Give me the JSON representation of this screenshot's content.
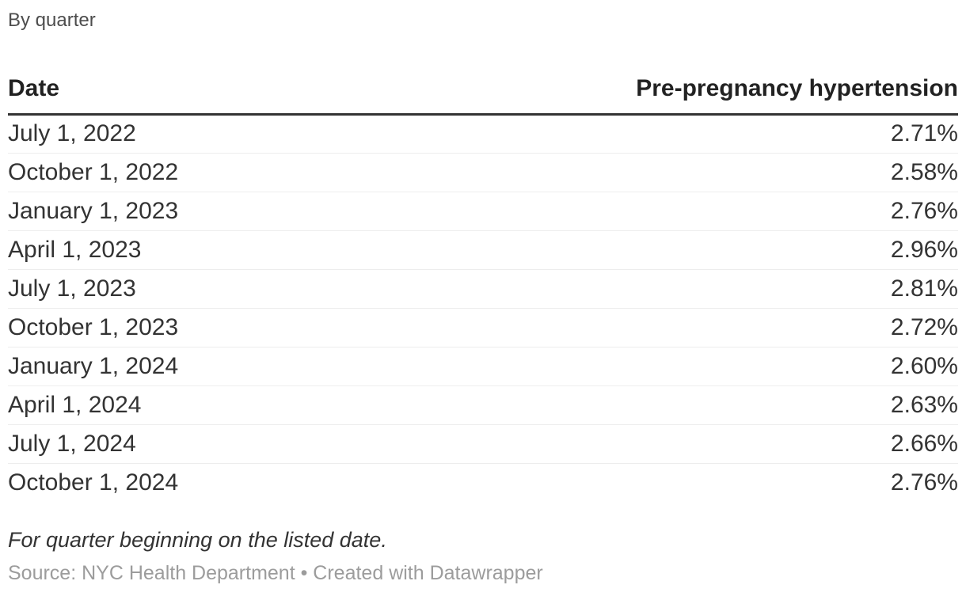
{
  "subtitle": "By quarter",
  "table": {
    "headers": {
      "date": "Date",
      "value": "Pre-pregnancy hypertension"
    },
    "rows": [
      {
        "date": "July 1, 2022",
        "value": "2.71%"
      },
      {
        "date": "October 1, 2022",
        "value": "2.58%"
      },
      {
        "date": "January 1, 2023",
        "value": "2.76%"
      },
      {
        "date": "April 1, 2023",
        "value": "2.96%"
      },
      {
        "date": "July 1, 2023",
        "value": "2.81%"
      },
      {
        "date": "October 1, 2023",
        "value": "2.72%"
      },
      {
        "date": "January 1, 2024",
        "value": "2.60%"
      },
      {
        "date": "April 1, 2024",
        "value": "2.63%"
      },
      {
        "date": "July 1, 2024",
        "value": "2.66%"
      },
      {
        "date": "October 1, 2024",
        "value": "2.76%"
      }
    ]
  },
  "footer": {
    "note": "For quarter beginning on the listed date.",
    "source": "Source: NYC Health Department • Created with Datawrapper"
  },
  "colors": {
    "header_text": "#222222",
    "body_text": "#333333",
    "subtitle_text": "#4d4d4d",
    "source_text": "#9c9c9c",
    "header_rule": "#333333",
    "row_divider": "#ededed",
    "background": "#ffffff"
  },
  "chart_data": {
    "type": "table",
    "title": "",
    "subtitle": "By quarter",
    "columns": [
      "Date",
      "Pre-pregnancy hypertension"
    ],
    "categories": [
      "July 1, 2022",
      "October 1, 2022",
      "January 1, 2023",
      "April 1, 2023",
      "July 1, 2023",
      "October 1, 2023",
      "January 1, 2024",
      "April 1, 2024",
      "July 1, 2024",
      "October 1, 2024"
    ],
    "series": [
      {
        "name": "Pre-pregnancy hypertension",
        "values": [
          2.71,
          2.58,
          2.76,
          2.96,
          2.81,
          2.72,
          2.6,
          2.63,
          2.66,
          2.76
        ],
        "unit": "%"
      }
    ],
    "note": "For quarter beginning on the listed date.",
    "source": "NYC Health Department"
  }
}
